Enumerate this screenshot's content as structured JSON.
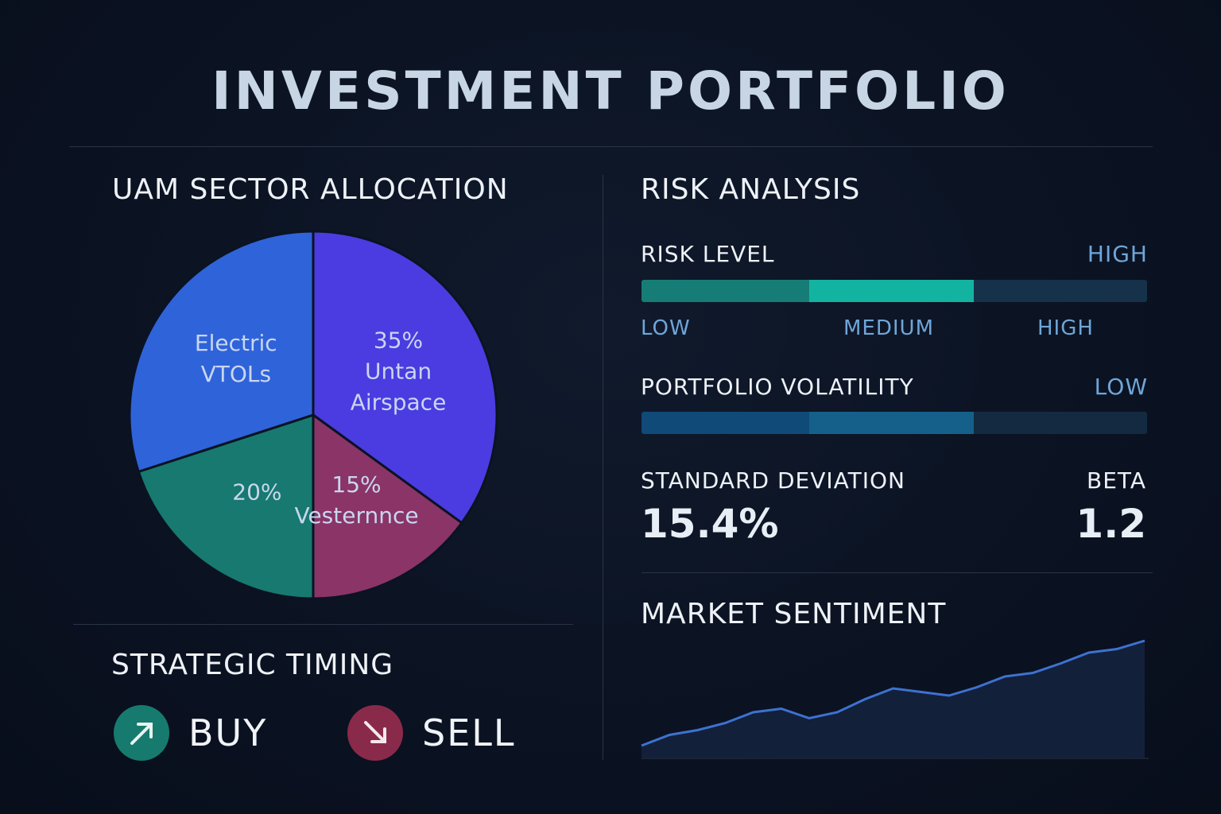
{
  "title": "INVESTMENT PORTFOLIO",
  "chart_data": [
    {
      "type": "pie",
      "title": "UAM SECTOR ALLOCATION",
      "categories": [
        "Untan Airspace",
        "Vesternnce",
        null,
        "Electric VTOLs"
      ],
      "values": [
        35,
        15,
        20,
        30
      ],
      "value_labels": [
        "35%",
        "15%",
        "20%",
        null
      ],
      "colors": [
        "#4a3ce0",
        "#8a3468",
        "#17796f",
        "#2f63d9"
      ]
    },
    {
      "type": "line",
      "title": "MARKET SENTIMENT",
      "values": [
        10,
        19,
        23,
        29,
        38,
        41,
        33,
        38,
        49,
        58,
        55,
        52,
        59,
        68,
        71,
        79,
        88,
        91,
        98
      ],
      "color": "#3d72d0",
      "fill": "#13203a"
    }
  ],
  "risk": {
    "title": "RISK ANALYSIS",
    "risk_level": {
      "label": "RISK LEVEL",
      "value": "HIGH",
      "scale": [
        "LOW",
        "MEDIUM",
        "HIGH"
      ]
    },
    "volatility": {
      "label": "PORTFOLIO VOLATILITY",
      "value": "LOW"
    },
    "std_dev": {
      "label": "STANDARD DEVIATION",
      "value": "15.4%"
    },
    "beta": {
      "label": "BETA",
      "value": 1.2
    }
  },
  "timing": {
    "title": "STRATEGIC TIMING",
    "buy": "BUY",
    "sell": "SELL"
  }
}
